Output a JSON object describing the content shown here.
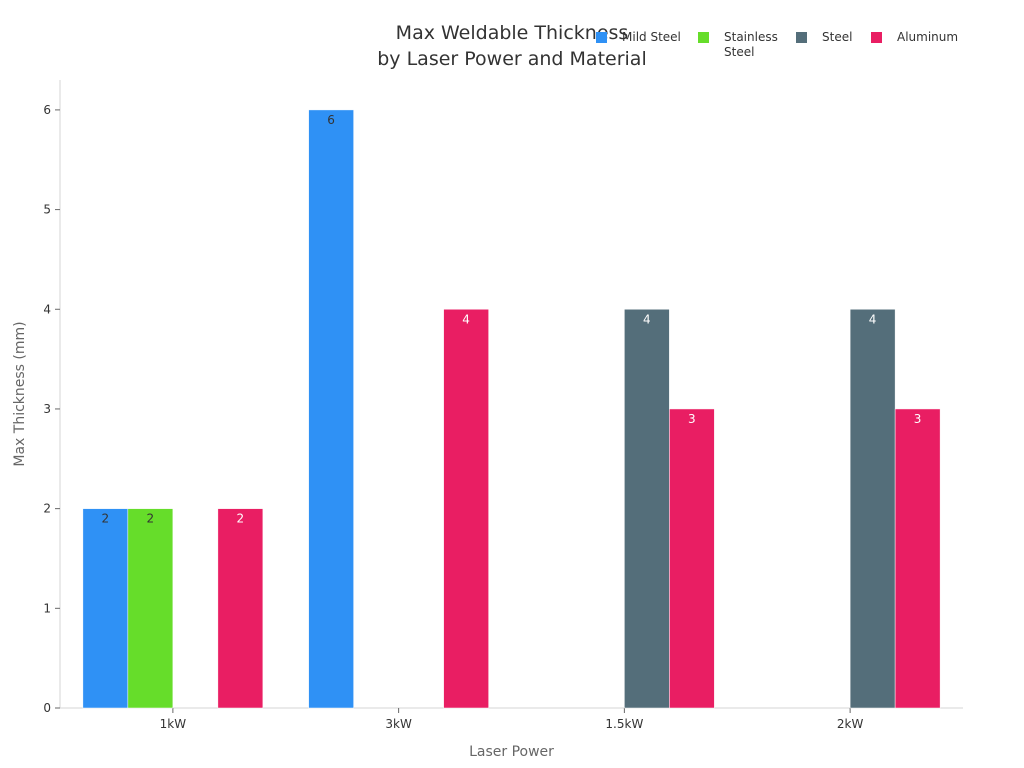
{
  "chart_data": {
    "type": "bar",
    "title": [
      "Max Weldable Thickness",
      "by Laser Power and Material"
    ],
    "xlabel": "Laser Power",
    "ylabel": "Max Thickness (mm)",
    "categories": [
      "1kW",
      "3kW",
      "1.5kW",
      "2kW"
    ],
    "ylim": [
      0,
      6.3
    ],
    "yticks": [
      0,
      1,
      2,
      3,
      4,
      5,
      6
    ],
    "legend_position": "top-right",
    "grid": false,
    "series": [
      {
        "name": "Mild Steel",
        "color": "#2f91f5",
        "label_color": "#333333",
        "values": [
          2,
          6,
          null,
          null
        ]
      },
      {
        "name": "Stainless Steel",
        "color": "#66dd2a",
        "label_color": "#333333",
        "values": [
          2,
          null,
          null,
          null
        ]
      },
      {
        "name": "Steel",
        "color": "#546e7a",
        "label_color": "#ffffff",
        "values": [
          null,
          null,
          4,
          4
        ]
      },
      {
        "name": "Aluminum",
        "color": "#e91e63",
        "label_color": "#ffffff",
        "values": [
          2,
          4,
          3,
          3
        ]
      }
    ]
  }
}
